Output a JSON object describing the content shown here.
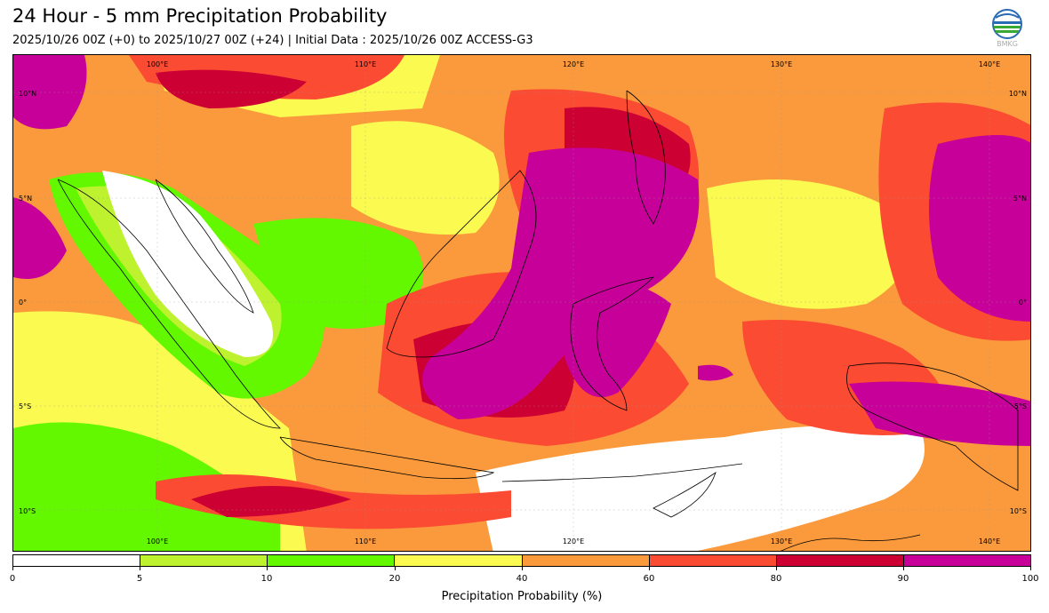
{
  "header": {
    "title": "24 Hour - 5 mm Precipitation Probability",
    "subtitle": "2025/10/26 00Z (+0) to 2025/10/27 00Z (+24) | Initial Data : 2025/10/26 00Z ACCESS-G3"
  },
  "logo": {
    "text": "BMKG",
    "icon": "bmkg-logo-icon"
  },
  "map": {
    "lon_labels": [
      "100°E",
      "110°E",
      "120°E",
      "130°E",
      "140°E"
    ],
    "lat_labels": [
      "10°N",
      "5°N",
      "0°",
      "5°S",
      "10°S"
    ]
  },
  "colorbar": {
    "label": "Precipitation Probability (%)",
    "ticks": [
      "0",
      "5",
      "10",
      "20",
      "40",
      "60",
      "80",
      "90",
      "100"
    ],
    "colors": [
      "#ffffff",
      "#bef22f",
      "#64f800",
      "#fafa50",
      "#fb9a3c",
      "#fb4b32",
      "#cc0033",
      "#c70099"
    ]
  }
}
